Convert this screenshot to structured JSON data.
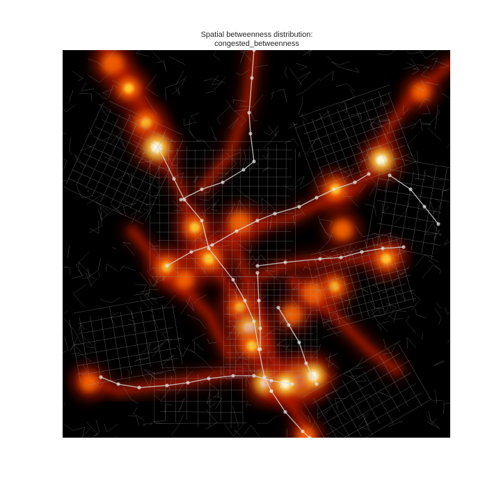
{
  "figure": {
    "title_line1": "Spatial betweenness distribution:",
    "title_line2": "congested_betweenness"
  },
  "map": {
    "background": "#000000",
    "street_color": "#9a9a9a",
    "rail_color": "#d8d8d8",
    "station_color": "#e6e6e6",
    "heat_colors": [
      "#5a0a00",
      "#c01a00",
      "#ff6a00",
      "#ffcc33",
      "#fffbe6"
    ],
    "colormap": "hot"
  }
}
